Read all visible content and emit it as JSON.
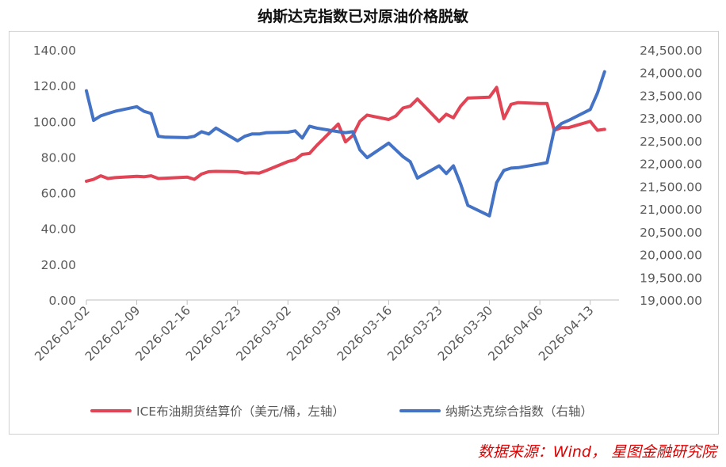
{
  "chart_data": {
    "type": "line",
    "title": "纳斯达克指数已对原油价格脱敏",
    "x_ticks": [
      "2026-02-02",
      "2026-02-09",
      "2026-02-16",
      "2026-02-23",
      "2026-03-02",
      "2026-03-09",
      "2026-03-16",
      "2026-03-23",
      "2026-03-30",
      "2026-04-06",
      "2026-04-13"
    ],
    "left_axis": {
      "ylim": [
        0,
        140
      ],
      "ticks": [
        "0.00",
        "20.00",
        "40.00",
        "60.00",
        "80.00",
        "100.00",
        "120.00",
        "140.00"
      ]
    },
    "right_axis": {
      "ylim": [
        19000,
        24500
      ],
      "ticks": [
        "19,000.00",
        "19,500.00",
        "20,000.00",
        "20,500.00",
        "21,000.00",
        "21,500.00",
        "22,000.00",
        "22,500.00",
        "23,000.00",
        "23,500.00",
        "24,000.00",
        "24,500.00"
      ]
    },
    "x_range_days": [
      0,
      74
    ],
    "series": [
      {
        "name": "ICE布油期货结算价（美元/桶，左轴）",
        "axis": "left",
        "color": "#e04455",
        "x": [
          "2026-02-02",
          "2026-02-03",
          "2026-02-04",
          "2026-02-05",
          "2026-02-06",
          "2026-02-09",
          "2026-02-10",
          "2026-02-11",
          "2026-02-12",
          "2026-02-13",
          "2026-02-16",
          "2026-02-17",
          "2026-02-18",
          "2026-02-19",
          "2026-02-20",
          "2026-02-23",
          "2026-02-24",
          "2026-02-25",
          "2026-02-26",
          "2026-02-27",
          "2026-03-02",
          "2026-03-03",
          "2026-03-04",
          "2026-03-05",
          "2026-03-06",
          "2026-03-09",
          "2026-03-10",
          "2026-03-11",
          "2026-03-12",
          "2026-03-13",
          "2026-03-16",
          "2026-03-17",
          "2026-03-18",
          "2026-03-19",
          "2026-03-20",
          "2026-03-23",
          "2026-03-24",
          "2026-03-25",
          "2026-03-26",
          "2026-03-27",
          "2026-03-30",
          "2026-03-31",
          "2026-04-01",
          "2026-04-02",
          "2026-04-03",
          "2026-04-06",
          "2026-04-07",
          "2026-04-08",
          "2026-04-09",
          "2026-04-10",
          "2026-04-13",
          "2026-04-14",
          "2026-04-15"
        ],
        "values": [
          66.5,
          67.5,
          69.5,
          68,
          68.5,
          69.2,
          69,
          69.5,
          68,
          68.2,
          68.8,
          67.5,
          70.5,
          71.8,
          72,
          71.8,
          71,
          71.2,
          71,
          72.5,
          77.5,
          78.5,
          81.5,
          82,
          86.5,
          98.5,
          88.5,
          92,
          100,
          103.5,
          101,
          103,
          107.5,
          108.5,
          112.5,
          100,
          104,
          102,
          108.5,
          113,
          113.5,
          119,
          101.5,
          109.5,
          110.5,
          110,
          110,
          95,
          96.5,
          96.5,
          100,
          95,
          95.5
        ]
      },
      {
        "name": "纳斯达克综合指数（右轴）",
        "axis": "right",
        "color": "#4472c4",
        "x": [
          "2026-02-02",
          "2026-02-03",
          "2026-02-04",
          "2026-02-05",
          "2026-02-06",
          "2026-02-09",
          "2026-02-10",
          "2026-02-11",
          "2026-02-12",
          "2026-02-13",
          "2026-02-16",
          "2026-02-17",
          "2026-02-18",
          "2026-02-19",
          "2026-02-20",
          "2026-02-23",
          "2026-02-24",
          "2026-02-25",
          "2026-02-26",
          "2026-02-27",
          "2026-03-02",
          "2026-03-03",
          "2026-03-04",
          "2026-03-05",
          "2026-03-06",
          "2026-03-09",
          "2026-03-10",
          "2026-03-11",
          "2026-03-12",
          "2026-03-13",
          "2026-03-16",
          "2026-03-17",
          "2026-03-18",
          "2026-03-19",
          "2026-03-20",
          "2026-03-23",
          "2026-03-24",
          "2026-03-25",
          "2026-03-26",
          "2026-03-27",
          "2026-03-30",
          "2026-03-31",
          "2026-04-01",
          "2026-04-02",
          "2026-04-03",
          "2026-04-06",
          "2026-04-07",
          "2026-04-08",
          "2026-04-09",
          "2026-04-10",
          "2026-04-13",
          "2026-04-14",
          "2026-04-15"
        ],
        "values": [
          23600,
          22950,
          23050,
          23100,
          23150,
          23250,
          23150,
          23100,
          22600,
          22580,
          22570,
          22600,
          22700,
          22650,
          22780,
          22500,
          22600,
          22650,
          22650,
          22680,
          22690,
          22720,
          22560,
          22820,
          22780,
          22700,
          22680,
          22700,
          22300,
          22130,
          22450,
          22300,
          22150,
          22040,
          21680,
          21950,
          21780,
          21950,
          21550,
          21080,
          20850,
          21580,
          21850,
          21900,
          21910,
          21990,
          22020,
          22740,
          22880,
          22950,
          23190,
          23550,
          24020
        ]
      }
    ],
    "legend_position": "bottom",
    "source": "数据来源：Wind， 星图金融研究院"
  }
}
